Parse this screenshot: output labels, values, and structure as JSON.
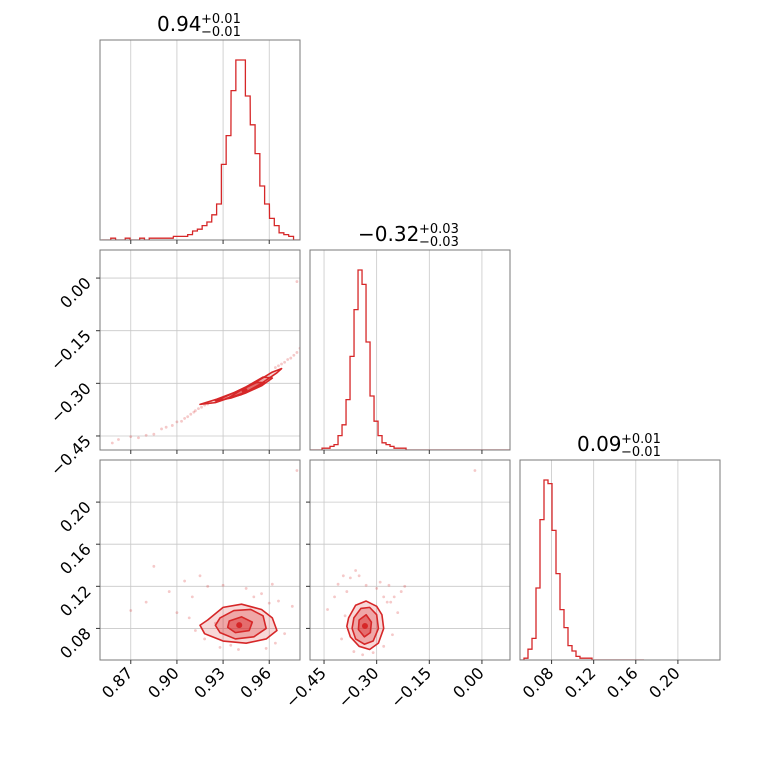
{
  "chart_data": {
    "type": "corner",
    "color": "#d62728",
    "parameters": [
      {
        "title_center": "0.94",
        "title_plus": "+0.01",
        "title_minus": "−0.01",
        "range": [
          0.85,
          0.98
        ],
        "ticks": [
          0.87,
          0.9,
          0.93,
          0.96
        ],
        "tick_labels": [
          "0.87",
          "0.90",
          "0.93",
          "0.96"
        ],
        "hist_bins": [
          0.8508,
          0.8539,
          0.857,
          0.8602,
          0.8633,
          0.8664,
          0.8695,
          0.8727,
          0.8758,
          0.8789,
          0.882,
          0.8852,
          0.8883,
          0.8914,
          0.8945,
          0.8977,
          0.9008,
          0.9039,
          0.907,
          0.9102,
          0.9133,
          0.9164,
          0.9195,
          0.9227,
          0.9258,
          0.9289,
          0.932,
          0.9352,
          0.9383,
          0.9414,
          0.9445,
          0.9477,
          0.9508,
          0.9539,
          0.957,
          0.9602,
          0.9633,
          0.9664,
          0.9695,
          0.9727,
          0.9758,
          0.9789
        ],
        "hist_counts": [
          0,
          0,
          1,
          0,
          0,
          1,
          0,
          0,
          1,
          0,
          1,
          1,
          1,
          1,
          1,
          2,
          2,
          2,
          3,
          5,
          6,
          8,
          10,
          14,
          20,
          42,
          58,
          83,
          100,
          100,
          80,
          64,
          48,
          30,
          20,
          12,
          8,
          4,
          3,
          2,
          0,
          0
        ]
      },
      {
        "title_center": "−0.32",
        "title_plus": "+0.03",
        "title_minus": "−0.03",
        "range": [
          -0.49,
          0.08
        ],
        "ticks": [
          -0.45,
          -0.3,
          -0.15,
          0.0
        ],
        "tick_labels": [
          "−0.45",
          "−0.30",
          "−0.15",
          "0.00"
        ],
        "hist_bins": [
          -0.4899,
          -0.4785,
          -0.4671,
          -0.4557,
          -0.4443,
          -0.4329,
          -0.4215,
          -0.4101,
          -0.3987,
          -0.3873,
          -0.3759,
          -0.3645,
          -0.3531,
          -0.3417,
          -0.3303,
          -0.3189,
          -0.3075,
          -0.2961,
          -0.2847,
          -0.2733,
          -0.2619,
          -0.2505,
          -0.2391,
          -0.2277,
          -0.2163,
          -0.2049,
          -0.1935,
          -0.1821,
          -0.1707,
          -0.1593,
          -0.1479,
          -0.1365,
          -0.1251,
          -0.1137,
          -0.1023,
          -0.0909,
          -0.0795,
          -0.0681,
          -0.0567,
          -0.0453,
          -0.0339,
          -0.0225,
          -0.0111,
          0.0003,
          0.0117,
          0.0231,
          0.0345,
          0.0459,
          0.0573,
          0.0687
        ],
        "hist_counts": [
          0,
          0,
          0,
          1,
          1,
          2,
          3,
          8,
          14,
          28,
          52,
          78,
          100,
          92,
          60,
          30,
          16,
          8,
          4,
          3,
          2,
          1,
          1,
          1,
          0,
          0,
          0,
          0,
          0,
          0,
          0,
          0,
          0,
          0,
          0,
          0,
          0,
          0,
          0,
          0,
          0,
          0,
          0,
          0,
          0,
          0,
          0,
          0,
          0,
          0
        ]
      },
      {
        "title_center": "0.09",
        "title_plus": "+0.01",
        "title_minus": "−0.01",
        "range": [
          0.05,
          0.24
        ],
        "ticks": [
          0.08,
          0.12,
          0.16,
          0.2
        ],
        "tick_labels": [
          "0.08",
          "0.12",
          "0.16",
          "0.20"
        ],
        "hist_bins": [
          0.05,
          0.0538,
          0.0576,
          0.0614,
          0.0652,
          0.069,
          0.0728,
          0.0766,
          0.0804,
          0.0842,
          0.088,
          0.0918,
          0.0956,
          0.0994,
          0.1032,
          0.107,
          0.1108,
          0.1146,
          0.1184,
          0.1222,
          0.126,
          0.1298,
          0.1336,
          0.1374,
          0.1412,
          0.145,
          0.1488,
          0.1526,
          0.1564,
          0.1602,
          0.164
        ],
        "hist_counts": [
          0,
          1,
          6,
          12,
          40,
          78,
          100,
          98,
          72,
          48,
          28,
          18,
          8,
          5,
          2,
          1,
          1,
          1,
          0,
          0,
          0,
          0,
          0,
          0,
          0,
          0,
          0,
          0,
          0,
          0,
          0
        ]
      }
    ],
    "pairs": [
      {
        "x_param": 0,
        "y_param": 1,
        "contour_fill_levels": [
          {
            "x": [
              0.915,
              0.925,
              0.935,
              0.945,
              0.955,
              0.965,
              0.968,
              0.962,
              0.95,
              0.938,
              0.926,
              0.915
            ],
            "y": [
              -0.36,
              -0.355,
              -0.34,
              -0.325,
              -0.3,
              -0.27,
              -0.258,
              -0.268,
              -0.3,
              -0.325,
              -0.345,
              -0.36
            ]
          },
          {
            "x": [
              0.925,
              0.935,
              0.945,
              0.955,
              0.962,
              0.956,
              0.945,
              0.934,
              0.925
            ],
            "y": [
              -0.35,
              -0.342,
              -0.327,
              -0.307,
              -0.285,
              -0.282,
              -0.31,
              -0.333,
              -0.35
            ]
          },
          {
            "x": [
              0.932,
              0.942,
              0.95,
              0.957,
              0.952,
              0.942,
              0.933
            ],
            "y": [
              -0.343,
              -0.332,
              -0.315,
              -0.298,
              -0.297,
              -0.318,
              -0.343
            ]
          }
        ],
        "scatter": [
          [
            0.858,
            -0.47
          ],
          [
            0.862,
            -0.46
          ],
          [
            0.87,
            -0.452
          ],
          [
            0.875,
            -0.455
          ],
          [
            0.88,
            -0.448
          ],
          [
            0.885,
            -0.445
          ],
          [
            0.89,
            -0.43
          ],
          [
            0.893,
            -0.425
          ],
          [
            0.897,
            -0.42
          ],
          [
            0.9,
            -0.41
          ],
          [
            0.903,
            -0.408
          ],
          [
            0.905,
            -0.4
          ],
          [
            0.907,
            -0.395
          ],
          [
            0.909,
            -0.388
          ],
          [
            0.911,
            -0.382
          ],
          [
            0.912,
            -0.378
          ],
          [
            0.914,
            -0.372
          ],
          [
            0.916,
            -0.368
          ],
          [
            0.918,
            -0.362
          ],
          [
            0.92,
            -0.359
          ],
          [
            0.922,
            -0.355
          ],
          [
            0.964,
            -0.255
          ],
          [
            0.966,
            -0.25
          ],
          [
            0.968,
            -0.245
          ],
          [
            0.97,
            -0.24
          ],
          [
            0.972,
            -0.232
          ],
          [
            0.974,
            -0.228
          ],
          [
            0.976,
            -0.22
          ],
          [
            0.978,
            -0.212
          ],
          [
            0.98,
            -0.2
          ],
          [
            0.978,
            -0.01
          ]
        ]
      },
      {
        "x_param": 0,
        "y_param": 2,
        "contour_fill_levels": [
          {
            "x": [
              0.92,
              0.93,
              0.942,
              0.955,
              0.962,
              0.965,
              0.958,
              0.945,
              0.93,
              0.918,
              0.915
            ],
            "y": [
              0.088,
              0.1,
              0.103,
              0.098,
              0.09,
              0.078,
              0.07,
              0.066,
              0.068,
              0.075,
              0.083
            ]
          },
          {
            "x": [
              0.928,
              0.937,
              0.948,
              0.956,
              0.958,
              0.95,
              0.938,
              0.928,
              0.925
            ],
            "y": [
              0.09,
              0.097,
              0.098,
              0.092,
              0.08,
              0.072,
              0.07,
              0.076,
              0.083
            ]
          },
          {
            "x": [
              0.934,
              0.942,
              0.949,
              0.947,
              0.938,
              0.933
            ],
            "y": [
              0.087,
              0.091,
              0.086,
              0.078,
              0.076,
              0.081
            ]
          }
        ],
        "scatter": [
          [
            0.87,
            0.097
          ],
          [
            0.88,
            0.105
          ],
          [
            0.885,
            0.139
          ],
          [
            0.895,
            0.115
          ],
          [
            0.9,
            0.095
          ],
          [
            0.905,
            0.125
          ],
          [
            0.91,
            0.11
          ],
          [
            0.912,
            0.078
          ],
          [
            0.915,
            0.13
          ],
          [
            0.92,
            0.12
          ],
          [
            0.925,
            0.085
          ],
          [
            0.93,
            0.121
          ],
          [
            0.945,
            0.118
          ],
          [
            0.95,
            0.11
          ],
          [
            0.955,
            0.113
          ],
          [
            0.96,
            0.104
          ],
          [
            0.962,
            0.122
          ],
          [
            0.966,
            0.106
          ],
          [
            0.97,
            0.075
          ],
          [
            0.975,
            0.101
          ],
          [
            0.978,
            0.23
          ],
          [
            0.94,
            0.06
          ],
          [
            0.935,
            0.064
          ],
          [
            0.958,
            0.061
          ],
          [
            0.918,
            0.07
          ],
          [
            0.928,
            0.062
          ],
          [
            0.964,
            0.066
          ],
          [
            0.908,
            0.09
          ]
        ]
      },
      {
        "x_param": 1,
        "y_param": 2,
        "contour_fill_levels": [
          {
            "x": [
              -0.38,
              -0.36,
              -0.33,
              -0.3,
              -0.285,
              -0.28,
              -0.295,
              -0.32,
              -0.35,
              -0.375,
              -0.385
            ],
            "y": [
              0.09,
              0.102,
              0.106,
              0.101,
              0.093,
              0.08,
              0.066,
              0.06,
              0.063,
              0.072,
              0.082
            ]
          },
          {
            "x": [
              -0.365,
              -0.345,
              -0.32,
              -0.3,
              -0.295,
              -0.31,
              -0.335,
              -0.36,
              -0.37
            ],
            "y": [
              0.09,
              0.099,
              0.1,
              0.093,
              0.08,
              0.068,
              0.065,
              0.07,
              0.08
            ]
          },
          {
            "x": [
              -0.35,
              -0.33,
              -0.315,
              -0.318,
              -0.335,
              -0.352
            ],
            "y": [
              0.088,
              0.093,
              0.086,
              0.076,
              0.072,
              0.079
            ]
          }
        ],
        "scatter": [
          [
            -0.44,
            0.098
          ],
          [
            -0.42,
            0.11
          ],
          [
            -0.41,
            0.122
          ],
          [
            -0.395,
            0.13
          ],
          [
            -0.39,
            0.092
          ],
          [
            -0.385,
            0.115
          ],
          [
            -0.375,
            0.128
          ],
          [
            -0.36,
            0.135
          ],
          [
            -0.35,
            0.13
          ],
          [
            -0.33,
            0.121
          ],
          [
            -0.3,
            0.118
          ],
          [
            -0.29,
            0.124
          ],
          [
            -0.28,
            0.11
          ],
          [
            -0.27,
            0.105
          ],
          [
            -0.265,
            0.121
          ],
          [
            -0.25,
            0.11
          ],
          [
            -0.24,
            0.095
          ],
          [
            -0.23,
            0.115
          ],
          [
            -0.22,
            0.12
          ],
          [
            -0.255,
            0.074
          ],
          [
            -0.365,
            0.058
          ],
          [
            -0.34,
            0.055
          ],
          [
            -0.31,
            0.057
          ],
          [
            -0.28,
            0.063
          ],
          [
            -0.4,
            0.07
          ],
          [
            -0.02,
            0.23
          ],
          [
            -0.26,
            0.105
          ]
        ]
      }
    ]
  }
}
